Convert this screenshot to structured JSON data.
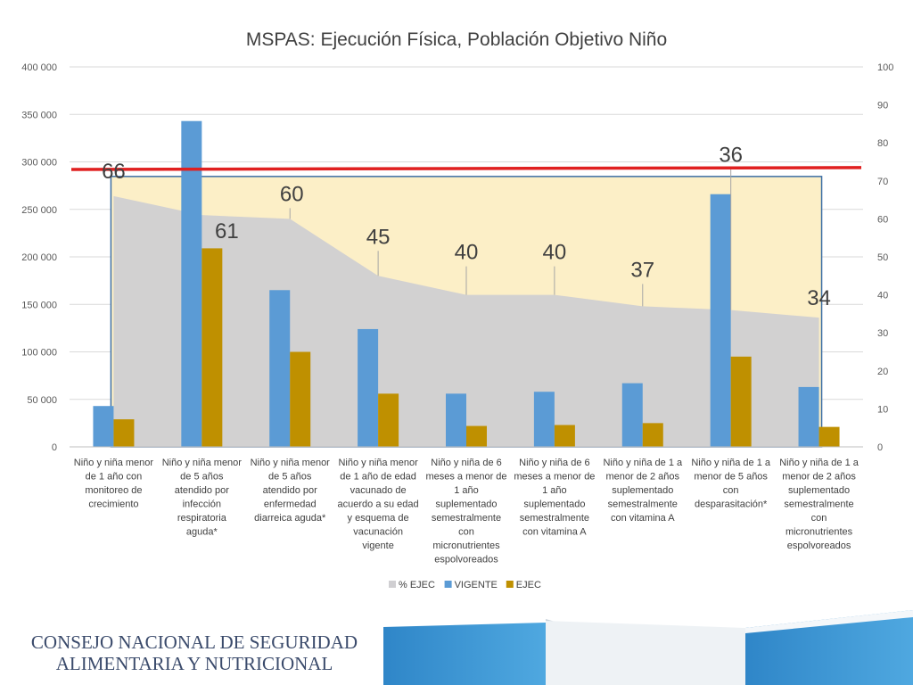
{
  "chart_data": {
    "type": "bar",
    "title": "MSPAS: Ejecución Física, Población Objetivo Niño",
    "categories": [
      [
        "Niño y niña menor",
        "de 1 año con",
        "monitoreo de",
        "crecimiento"
      ],
      [
        "Niño y niña menor",
        "de 5 años",
        "atendido por",
        "infección",
        "respiratoria",
        "aguda*"
      ],
      [
        "Niño y niña menor",
        "de 5 años",
        "atendido por",
        "enfermedad",
        "diarreica aguda*"
      ],
      [
        "Niño y niña menor",
        "de 1 año de edad",
        "vacunado de",
        "acuerdo a su edad",
        "y esquema de",
        "vacunación",
        "vigente"
      ],
      [
        "Niño y niña de 6",
        "meses a menor de",
        "1 año",
        "suplementado",
        "semestralmente",
        "con",
        "micronutrientes",
        "espolvoreados"
      ],
      [
        "Niño y niña de 6",
        "meses a menor de",
        "1 año",
        "suplementado",
        "semestralmente",
        "con vitamina A"
      ],
      [
        "Niño y niña de  1 a",
        "menor de 2 años",
        "suplementado",
        "semestralmente",
        "con vitamina A"
      ],
      [
        "Niño y niña de 1 a",
        "menor de 5 años",
        "con",
        "desparasitación*"
      ],
      [
        "Niño y niña de 1 a",
        "menor de 2 años",
        "suplementado",
        "semestralmente",
        "con",
        "micronutrientes",
        "espolvoreados"
      ]
    ],
    "series": [
      {
        "name": "% EJEC",
        "type": "area",
        "axis": "right",
        "color": "#d0cfd2",
        "values": [
          66,
          61,
          60,
          45,
          40,
          40,
          37,
          36,
          34
        ],
        "labels": [
          "66",
          "61",
          "60",
          "45",
          "40",
          "40",
          "37",
          "36",
          "34"
        ]
      },
      {
        "name": "VIGENTE",
        "type": "bar",
        "axis": "left",
        "color": "#5b9bd5",
        "values": [
          43000,
          343000,
          165000,
          124000,
          56000,
          58000,
          67000,
          266000,
          63000
        ]
      },
      {
        "name": "EJEC",
        "type": "bar",
        "axis": "left",
        "color": "#bf9000",
        "values": [
          29000,
          209000,
          100000,
          56000,
          22000,
          23000,
          25000,
          95000,
          21000
        ]
      }
    ],
    "left_axis": {
      "min": 0,
      "max": 400000,
      "ticks": [
        "0",
        "50 000",
        "100 000",
        "150 000",
        "200 000",
        "250 000",
        "300 000",
        "350 000",
        "400 000"
      ]
    },
    "right_axis": {
      "min": 0,
      "max": 100,
      "ticks": [
        "0",
        "10",
        "20",
        "30",
        "40",
        "50",
        "60",
        "70",
        "80",
        "90",
        "100"
      ]
    },
    "reference_line": {
      "axis": "right",
      "start": 73,
      "end": 73.5,
      "color": "#e02020"
    },
    "highlight_band": {
      "fill": "#fcefc7",
      "border": "#3c6ea5"
    },
    "grid": true,
    "legend_position": "bottom"
  },
  "footer": {
    "org_line1": "CONSEJO NACIONAL DE SEGURIDAD",
    "org_line2": "ALIMENTARIA Y NUTRICIONAL"
  }
}
